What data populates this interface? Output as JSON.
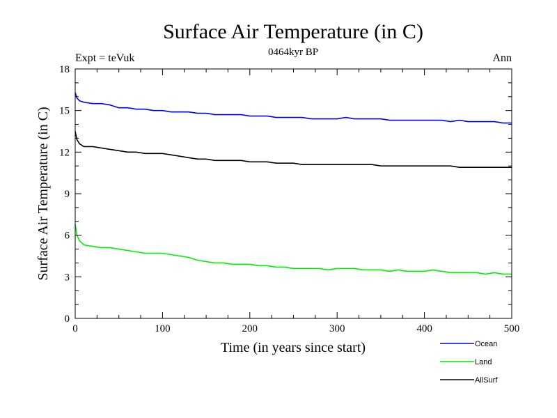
{
  "chart_data": {
    "type": "line",
    "title": "Surface Air Temperature (in C)",
    "subtitle": "0464kyr BP",
    "left_note": "Expt = teVuk",
    "right_note": "Ann",
    "xlabel": "Time (in years since start)",
    "ylabel": "Surface Air Temperature (in C)",
    "xlim": [
      0,
      500
    ],
    "ylim": [
      0,
      18
    ],
    "x_ticks": [
      "0",
      "100",
      "200",
      "300",
      "400",
      "500"
    ],
    "y_ticks": [
      "0",
      "3",
      "6",
      "9",
      "12",
      "15",
      "18"
    ],
    "grid": false,
    "legend_position": "bottom-right",
    "x": [
      0,
      2,
      5,
      10,
      20,
      30,
      40,
      50,
      60,
      70,
      80,
      90,
      100,
      110,
      120,
      130,
      140,
      150,
      160,
      170,
      180,
      190,
      200,
      210,
      220,
      230,
      240,
      250,
      260,
      270,
      280,
      290,
      300,
      310,
      320,
      330,
      340,
      350,
      360,
      370,
      380,
      390,
      400,
      410,
      420,
      430,
      440,
      450,
      460,
      470,
      480,
      490,
      500
    ],
    "series": [
      {
        "name": "Ocean",
        "color": "#0000ee",
        "values": [
          16.3,
          15.9,
          15.7,
          15.6,
          15.5,
          15.5,
          15.4,
          15.2,
          15.2,
          15.1,
          15.1,
          15.0,
          15.0,
          14.9,
          14.9,
          14.9,
          14.8,
          14.8,
          14.7,
          14.7,
          14.7,
          14.7,
          14.6,
          14.6,
          14.6,
          14.5,
          14.5,
          14.5,
          14.5,
          14.4,
          14.4,
          14.4,
          14.4,
          14.5,
          14.4,
          14.4,
          14.4,
          14.4,
          14.3,
          14.3,
          14.3,
          14.3,
          14.3,
          14.3,
          14.3,
          14.2,
          14.3,
          14.2,
          14.2,
          14.2,
          14.2,
          14.1,
          14.1
        ]
      },
      {
        "name": "Land",
        "color": "#00ee00",
        "values": [
          6.8,
          6.0,
          5.6,
          5.3,
          5.2,
          5.1,
          5.1,
          5.0,
          4.9,
          4.8,
          4.7,
          4.7,
          4.7,
          4.6,
          4.5,
          4.4,
          4.2,
          4.1,
          4.0,
          4.0,
          3.9,
          3.9,
          3.9,
          3.8,
          3.8,
          3.7,
          3.7,
          3.6,
          3.6,
          3.6,
          3.6,
          3.5,
          3.6,
          3.6,
          3.6,
          3.5,
          3.5,
          3.5,
          3.4,
          3.5,
          3.4,
          3.4,
          3.4,
          3.5,
          3.4,
          3.3,
          3.3,
          3.3,
          3.3,
          3.2,
          3.3,
          3.2,
          3.2
        ]
      },
      {
        "name": "AllSurf",
        "color": "#000000",
        "values": [
          13.5,
          12.9,
          12.6,
          12.4,
          12.4,
          12.3,
          12.2,
          12.1,
          12.0,
          12.0,
          11.9,
          11.9,
          11.9,
          11.8,
          11.7,
          11.6,
          11.5,
          11.5,
          11.4,
          11.4,
          11.4,
          11.4,
          11.3,
          11.3,
          11.3,
          11.2,
          11.2,
          11.2,
          11.1,
          11.1,
          11.1,
          11.1,
          11.1,
          11.1,
          11.1,
          11.1,
          11.1,
          11.0,
          11.0,
          11.0,
          11.0,
          11.0,
          11.0,
          11.0,
          11.0,
          11.0,
          10.9,
          10.9,
          10.9,
          10.9,
          10.9,
          10.9,
          10.9
        ]
      }
    ]
  }
}
